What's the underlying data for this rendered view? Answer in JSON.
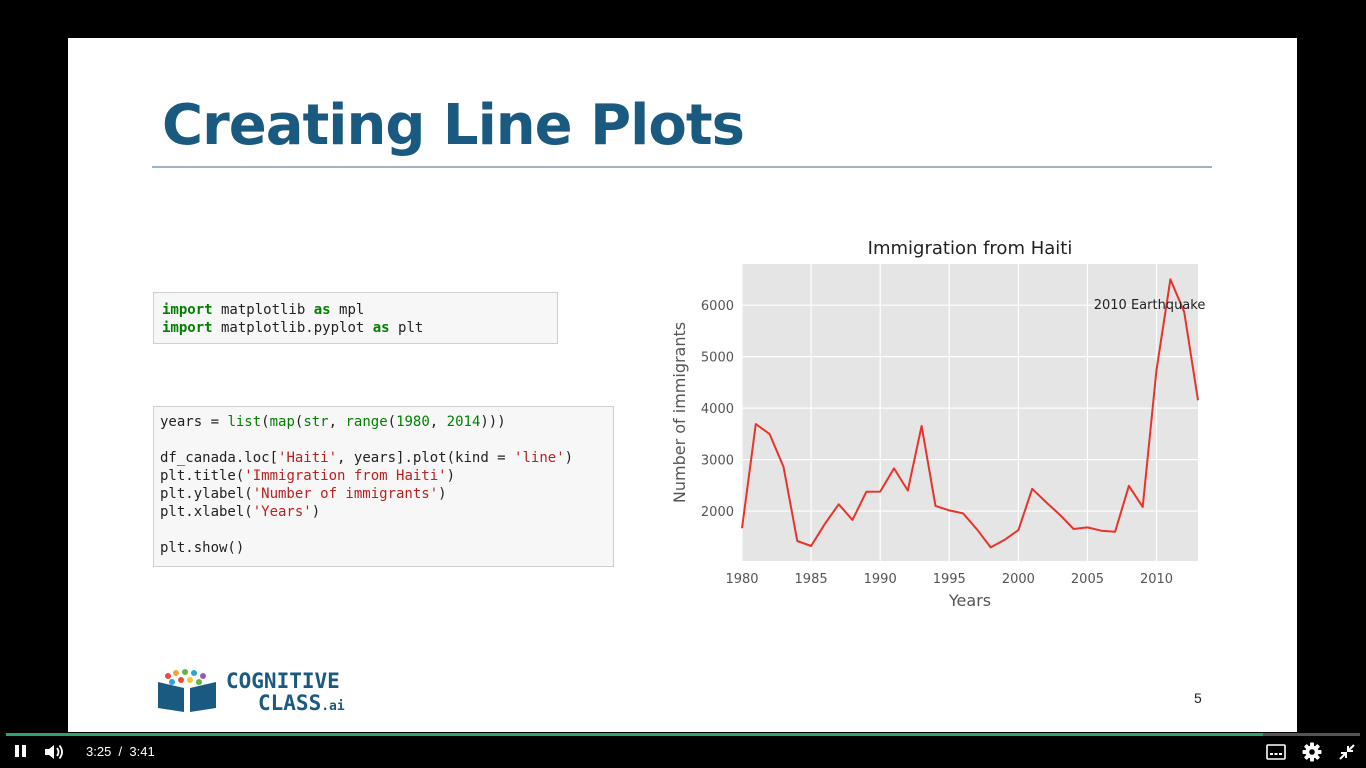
{
  "slide": {
    "title": "Creating Line Plots",
    "page_number": "5"
  },
  "code": {
    "cell1": [
      [
        {
          "t": "import",
          "c": "kw"
        },
        {
          "t": " matplotlib "
        },
        {
          "t": "as",
          "c": "kw"
        },
        {
          "t": " mpl"
        }
      ],
      [
        {
          "t": "import",
          "c": "kw"
        },
        {
          "t": " matplotlib.pyplot "
        },
        {
          "t": "as",
          "c": "kw"
        },
        {
          "t": " plt"
        }
      ]
    ],
    "cell2": [
      [
        {
          "t": "years = "
        },
        {
          "t": "list",
          "c": "bi"
        },
        {
          "t": "("
        },
        {
          "t": "map",
          "c": "bi"
        },
        {
          "t": "("
        },
        {
          "t": "str",
          "c": "bi"
        },
        {
          "t": ", "
        },
        {
          "t": "range",
          "c": "bi"
        },
        {
          "t": "("
        },
        {
          "t": "1980",
          "c": "num"
        },
        {
          "t": ", "
        },
        {
          "t": "2014",
          "c": "num"
        },
        {
          "t": ")))"
        }
      ],
      [],
      [
        {
          "t": "df_canada.loc["
        },
        {
          "t": "'Haiti'",
          "c": "str"
        },
        {
          "t": ", years].plot(kind = "
        },
        {
          "t": "'line'",
          "c": "str"
        },
        {
          "t": ")"
        }
      ],
      [
        {
          "t": "plt.title("
        },
        {
          "t": "'Immigration from Haiti'",
          "c": "str"
        },
        {
          "t": ")"
        }
      ],
      [
        {
          "t": "plt.ylabel("
        },
        {
          "t": "'Number of immigrants'",
          "c": "str"
        },
        {
          "t": ")"
        }
      ],
      [
        {
          "t": "plt.xlabel("
        },
        {
          "t": "'Years'",
          "c": "str"
        },
        {
          "t": ")"
        }
      ],
      [],
      [
        {
          "t": "plt.show()"
        }
      ]
    ]
  },
  "chart_data": {
    "type": "line",
    "title": "Immigration from Haiti",
    "xlabel": "Years",
    "ylabel": "Number of immigrants",
    "x": [
      1980,
      1981,
      1982,
      1983,
      1984,
      1985,
      1986,
      1987,
      1988,
      1989,
      1990,
      1991,
      1992,
      1993,
      1994,
      1995,
      1996,
      1997,
      1998,
      1999,
      2000,
      2001,
      2002,
      2003,
      2004,
      2005,
      2006,
      2007,
      2008,
      2009,
      2010,
      2011,
      2012,
      2013
    ],
    "series": [
      {
        "values": [
          1666,
          3692,
          3498,
          2860,
          1418,
          1321,
          1753,
          2132,
          1829,
          2377,
          2379,
          2829,
          2399,
          3655,
          2100,
          2014,
          1955,
          1645,
          1295,
          1439,
          1631,
          2433,
          2174,
          1930,
          1652,
          1682,
          1619,
          1598,
          2491,
          2080,
          4744,
          6503,
          5868,
          4152
        ],
        "color": "#e8332b"
      }
    ],
    "xticks": [
      1980,
      1985,
      1990,
      1995,
      2000,
      2005,
      2010
    ],
    "yticks": [
      2000,
      3000,
      4000,
      5000,
      6000
    ],
    "xlim": [
      1980,
      2013
    ],
    "ylim": [
      1030,
      6800
    ],
    "grid": true,
    "background": "#e5e5e5",
    "annotations": [
      {
        "text": "2010 Earthquake",
        "x": 2010,
        "y": 6000
      }
    ]
  },
  "logo": {
    "line1": "COGNITIVE",
    "line2": "CLASS",
    "suffix": ".ai"
  },
  "player": {
    "current_time": "3:25",
    "separator": "/",
    "duration": "3:41",
    "progress_fraction": 0.928,
    "accent": "#2fa36b"
  }
}
